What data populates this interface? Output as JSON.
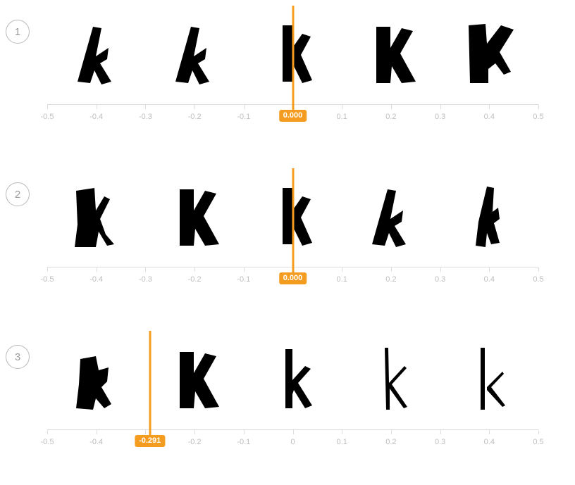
{
  "rows": [
    {
      "number": "1",
      "slider_value": 0.0,
      "slider_label": "0.000",
      "glyphs": [
        "k-thick-italic",
        "k-thick-italic",
        "k-thick-upright",
        "k-bold",
        "k-bold-heavy"
      ]
    },
    {
      "number": "2",
      "slider_value": 0.0,
      "slider_label": "0.000",
      "glyphs": [
        "k-bold-rough",
        "k-bold",
        "k-thick-upright",
        "k-thick-italic",
        "k-thick-slim"
      ]
    },
    {
      "number": "3",
      "slider_value": -0.291,
      "slider_label": "-0.291",
      "glyphs": [
        "k-blob",
        "k-bold",
        "k-medium",
        "k-thin",
        "k-thin-light"
      ]
    }
  ],
  "axis": {
    "min": -0.5,
    "max": 0.5,
    "ticks": [
      "-0.5",
      "-0.4",
      "-0.3",
      "-0.2",
      "-0.1",
      "0",
      "0.1",
      "0.2",
      "0.3",
      "0.4",
      "0.5"
    ]
  },
  "samples": [
    -0.4,
    -0.2,
    0.0,
    0.2,
    0.4
  ],
  "colors": {
    "accent": "#f39c1f",
    "axis": "#dddddd",
    "tick_label": "#bdbdbd",
    "glyph": "#000000"
  }
}
